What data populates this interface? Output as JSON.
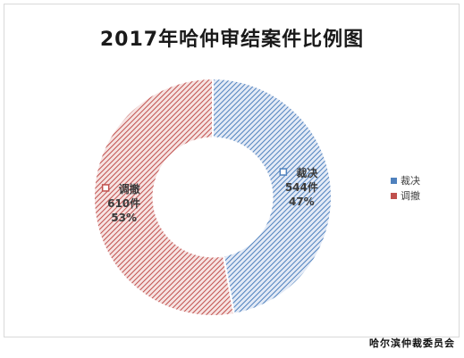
{
  "chart_data": {
    "type": "pie",
    "title": "2017年哈仲审结案件比例图",
    "categories": [
      "裁决",
      "调撤"
    ],
    "values": [
      544,
      610
    ],
    "unit": "件",
    "percent_labels": [
      "47%",
      "53%"
    ],
    "count_labels": [
      "544件",
      "610件"
    ],
    "colors": [
      "#4f81bd",
      "#c0504d"
    ],
    "hole": 0.5,
    "legend": "right"
  },
  "footer": "哈尔滨仲裁委员会"
}
